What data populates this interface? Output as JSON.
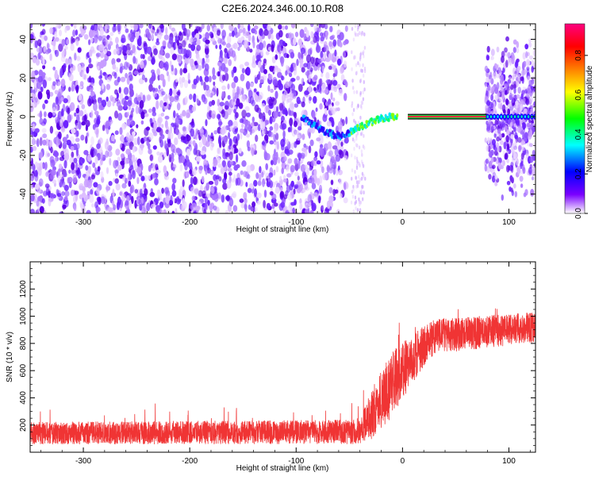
{
  "title": "C2E6.2024.346.00.10.R08",
  "chart_data": [
    {
      "type": "heatmap",
      "xlabel": "Height of straight line (km)",
      "ylabel": "Frequency (Hz)",
      "xlim": [
        -350,
        125
      ],
      "ylim": [
        -50,
        48
      ],
      "xticks": [
        -300,
        -200,
        -100,
        0,
        100
      ],
      "yticks": [
        -40,
        -20,
        0,
        20,
        40
      ],
      "grid": false,
      "colorbar": {
        "label": "Normalized spectral amplitude",
        "range": [
          0,
          0.96
        ],
        "ticks": [
          "0.0",
          "0.2",
          "0.4",
          "0.6",
          "0.8"
        ],
        "colors": [
          "#ffffff",
          "#7a00ff",
          "#0000ff",
          "#00ffff",
          "#00ff00",
          "#ffff00",
          "#ff8000",
          "#ff0000",
          "#ff0080"
        ]
      },
      "features": {
        "noise_region_x": [
          -350,
          -52
        ],
        "noise_columns_x": [
          -48,
          -35
        ],
        "tone_x": [
          -95,
          -5
        ],
        "tone_freq_start": 0,
        "tone_freq_min": -10,
        "tone_min_x": -55,
        "tone_freq_end": 0,
        "carrier_x": [
          5,
          80
        ],
        "carrier_freq": 0,
        "right_noise_x": [
          78,
          125
        ]
      }
    },
    {
      "type": "line",
      "xlabel": "Height of straight line (km)",
      "ylabel": "SNR (10 * v/v)",
      "xlim": [
        -350,
        125
      ],
      "ylim": [
        0,
        1400
      ],
      "xticks": [
        -300,
        -200,
        -100,
        0,
        100
      ],
      "yticks": [
        200,
        400,
        600,
        800,
        1000,
        1200
      ],
      "grid": false,
      "series": [
        {
          "color": "#f03434",
          "profile": [
            {
              "x": -350,
              "mean": 140,
              "spread": 110
            },
            {
              "x": -40,
              "mean": 150,
              "spread": 120
            },
            {
              "x": -30,
              "mean": 270,
              "spread": 250
            },
            {
              "x": -10,
              "mean": 500,
              "spread": 320
            },
            {
              "x": 15,
              "mean": 740,
              "spread": 220
            },
            {
              "x": 30,
              "mean": 850,
              "spread": 170
            },
            {
              "x": 125,
              "mean": 920,
              "spread": 150
            }
          ]
        }
      ]
    }
  ]
}
